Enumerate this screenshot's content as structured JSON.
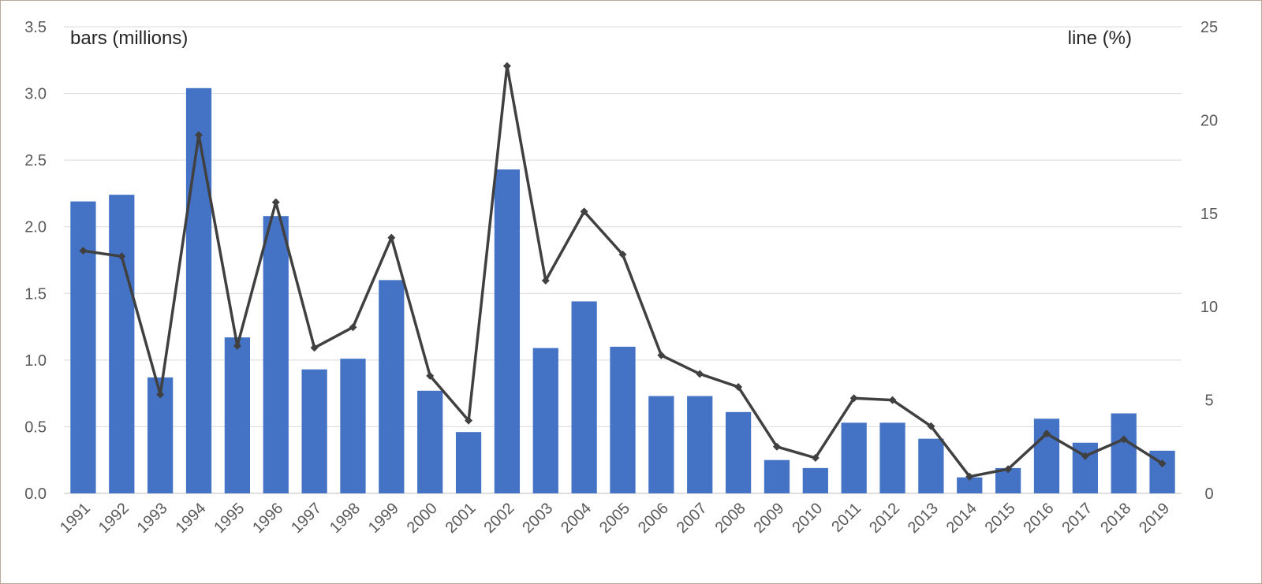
{
  "chart_data": {
    "type": "bar",
    "categories": [
      "1991",
      "1992",
      "1993",
      "1994",
      "1995",
      "1996",
      "1997",
      "1998",
      "1999",
      "2000",
      "2001",
      "2002",
      "2003",
      "2004",
      "2005",
      "2006",
      "2007",
      "2008",
      "2009",
      "2010",
      "2011",
      "2012",
      "2013",
      "2014",
      "2015",
      "2016",
      "2017",
      "2018",
      "2019"
    ],
    "series": [
      {
        "type": "bar",
        "axis": "left",
        "color": "#4472c4",
        "values": [
          2.19,
          2.24,
          0.87,
          3.04,
          1.17,
          2.08,
          0.93,
          1.01,
          1.6,
          0.77,
          0.46,
          2.43,
          1.09,
          1.44,
          1.1,
          0.73,
          0.73,
          0.61,
          0.25,
          0.19,
          0.53,
          0.53,
          0.41,
          0.12,
          0.19,
          0.56,
          0.38,
          0.6,
          0.32
        ]
      },
      {
        "type": "line",
        "axis": "right",
        "color": "#404040",
        "values": [
          13.0,
          12.7,
          5.3,
          19.2,
          7.9,
          15.6,
          7.8,
          8.9,
          13.7,
          6.3,
          3.9,
          22.9,
          11.4,
          15.1,
          12.8,
          7.4,
          6.4,
          5.7,
          2.5,
          1.9,
          5.1,
          5.0,
          3.6,
          0.9,
          1.3,
          3.2,
          2.0,
          2.9,
          1.6
        ]
      }
    ],
    "ylabel": "bars (millions)",
    "y2label": "line (%)",
    "ylim": [
      0,
      3.5
    ],
    "y2lim": [
      0,
      25
    ],
    "yticks": [
      "0.0",
      "0.5",
      "1.0",
      "1.5",
      "2.0",
      "2.5",
      "3.0",
      "3.5"
    ],
    "y2ticks": [
      "0",
      "5",
      "10",
      "15",
      "20",
      "25"
    ],
    "grid": true,
    "legend": "none"
  }
}
